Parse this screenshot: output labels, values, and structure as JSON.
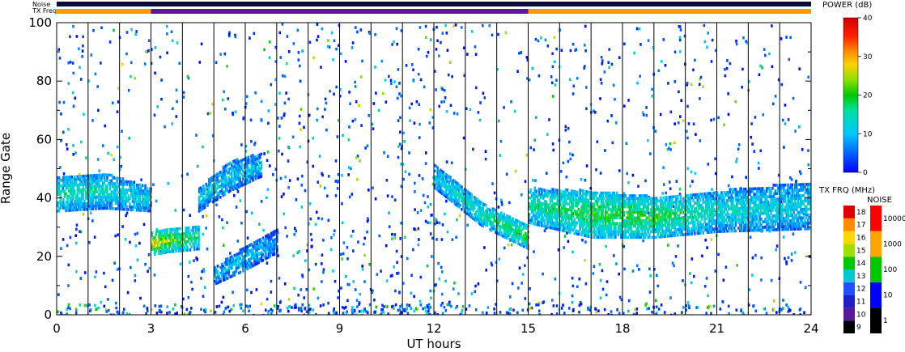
{
  "chart_data": {
    "type": "heatmap",
    "xlabel": "UT hours",
    "ylabel": "Range Gate",
    "xlim": [
      0,
      24
    ],
    "ylim": [
      0,
      100
    ],
    "x_ticks": [
      "0",
      "3",
      "6",
      "9",
      "12",
      "15",
      "18",
      "21",
      "24"
    ],
    "y_ticks": [
      "0",
      "20",
      "40",
      "60",
      "80",
      "100"
    ],
    "scan_boundaries_hours": [
      1,
      2,
      3,
      4,
      5,
      6,
      7,
      8,
      9,
      10,
      11,
      12,
      13,
      14,
      15,
      16,
      17,
      18,
      19,
      20,
      21,
      22,
      23
    ],
    "status_bars": {
      "noise_label": "Noise",
      "freq_label": "TX Freq",
      "freq_segments": [
        {
          "start": 0,
          "end": 3,
          "color": "#ff9900"
        },
        {
          "start": 3,
          "end": 15,
          "color": "#5a189a"
        },
        {
          "start": 15,
          "end": 24,
          "color": "#ff9900"
        }
      ]
    },
    "power_colorbar": {
      "title": "POWER (dB)",
      "ticks": [
        "0",
        "10",
        "20",
        "30",
        "40"
      ],
      "range": [
        0,
        40
      ]
    },
    "freq_colorbar": {
      "title": "TX FRQ (MHz)",
      "ticks": [
        "9",
        "10",
        "11",
        "12",
        "13",
        "14",
        "15",
        "16",
        "17",
        "18"
      ],
      "colors": [
        "#000000",
        "#5a189a",
        "#2020c8",
        "#2050ff",
        "#00c8d2",
        "#00c800",
        "#a0e000",
        "#ffd700",
        "#ff8c00",
        "#e00000"
      ]
    },
    "noise_colorbar": {
      "title": "NOISE",
      "ticks": [
        "1",
        "10",
        "100",
        "1000",
        "10000"
      ],
      "colors": [
        "#000000",
        "#0000ff",
        "#00c800",
        "#ffa500",
        "#ff0000"
      ]
    },
    "echo_bands": [
      {
        "name": "band-a",
        "t": [
          0,
          1.5,
          3
        ],
        "gate_mid": [
          42,
          43,
          40
        ],
        "gate_halfwidth": [
          6,
          6,
          4
        ],
        "power": [
          16,
          14,
          12
        ]
      },
      {
        "name": "band-b",
        "t": [
          3,
          3.5,
          4.5
        ],
        "gate_mid": [
          25,
          26,
          27
        ],
        "gate_halfwidth": [
          4,
          4,
          4
        ],
        "power": [
          28,
          24,
          16
        ]
      },
      {
        "name": "band-c",
        "t": [
          4.5,
          5.5,
          6.5
        ],
        "gate_mid": [
          40,
          48,
          52
        ],
        "gate_halfwidth": [
          4,
          5,
          4
        ],
        "power": [
          12,
          12,
          10
        ]
      },
      {
        "name": "band-d",
        "t": [
          5,
          6,
          7
        ],
        "gate_mid": [
          14,
          20,
          26
        ],
        "gate_halfwidth": [
          3,
          4,
          4
        ],
        "power": [
          10,
          11,
          8
        ]
      },
      {
        "name": "band-e",
        "t": [
          12,
          13.5,
          15
        ],
        "gate_mid": [
          48,
          35,
          27
        ],
        "gate_halfwidth": [
          4,
          4,
          4
        ],
        "power": [
          12,
          16,
          20
        ]
      },
      {
        "name": "band-f",
        "t": [
          15,
          17,
          19,
          21,
          24
        ],
        "gate_mid": [
          38,
          35,
          34,
          36,
          38
        ],
        "gate_halfwidth": [
          6,
          8,
          7,
          7,
          8
        ],
        "power": [
          16,
          20,
          20,
          14,
          12
        ]
      }
    ]
  }
}
